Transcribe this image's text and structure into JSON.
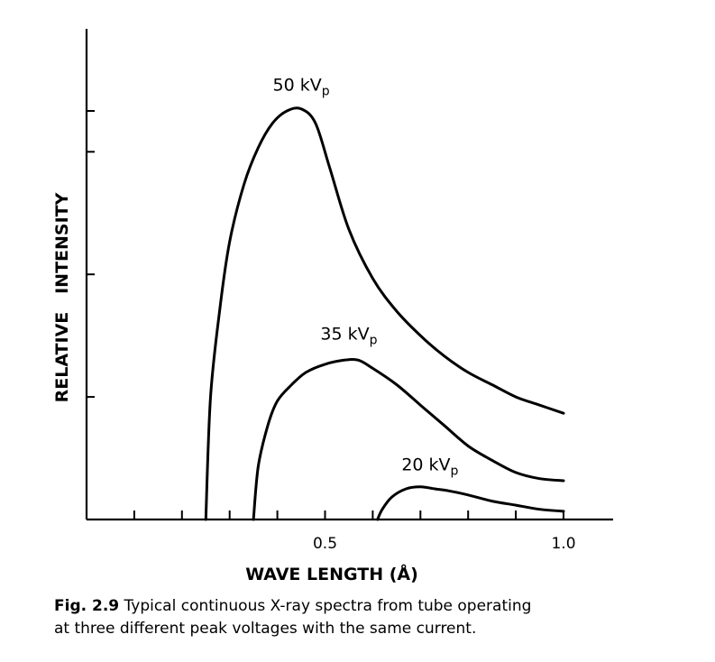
{
  "chart_data": {
    "type": "line",
    "title": "",
    "xlabel": "WAVE LENGTH (Å)",
    "ylabel": "RELATIVE   INTENSITY",
    "xlim": [
      0.0,
      1.1
    ],
    "ylim": [
      0,
      10
    ],
    "x_tick_labels": [
      {
        "value": 0.5,
        "label": "0.5"
      },
      {
        "value": 1.0,
        "label": "1.0"
      }
    ],
    "x_minor_ticks": [
      0.1,
      0.2,
      0.3,
      0.4,
      0.5,
      0.6,
      0.7,
      0.8,
      0.9,
      1.0
    ],
    "y_ticks": [
      3,
      6,
      9,
      10
    ],
    "grid": false,
    "legend": "none",
    "series": [
      {
        "name": "50 kVp",
        "label_main": "50 kV",
        "label_sub": "p",
        "label_at": [
          0.45,
          10.5
        ],
        "x": [
          0.25,
          0.26,
          0.28,
          0.3,
          0.33,
          0.36,
          0.39,
          0.42,
          0.45,
          0.48,
          0.51,
          0.55,
          0.6,
          0.65,
          0.7,
          0.75,
          0.8,
          0.85,
          0.9,
          0.95,
          1.0
        ],
        "values": [
          0.0,
          3.0,
          5.2,
          6.8,
          8.2,
          9.1,
          9.7,
          10.0,
          10.05,
          9.7,
          8.6,
          7.1,
          5.9,
          5.1,
          4.5,
          4.0,
          3.6,
          3.3,
          3.0,
          2.8,
          2.6
        ]
      },
      {
        "name": "35 kVp",
        "label_main": "35 kV",
        "label_sub": "p",
        "label_at": [
          0.55,
          4.4
        ],
        "x": [
          0.35,
          0.36,
          0.38,
          0.4,
          0.43,
          0.46,
          0.5,
          0.54,
          0.57,
          0.6,
          0.65,
          0.7,
          0.75,
          0.8,
          0.85,
          0.9,
          0.95,
          1.0
        ],
        "values": [
          0.0,
          1.3,
          2.3,
          2.9,
          3.3,
          3.6,
          3.8,
          3.9,
          3.9,
          3.7,
          3.3,
          2.8,
          2.3,
          1.8,
          1.45,
          1.15,
          1.0,
          0.95
        ]
      },
      {
        "name": "20 kVp",
        "label_main": "20 kV",
        "label_sub": "p",
        "label_at": [
          0.72,
          1.2
        ],
        "x": [
          0.61,
          0.62,
          0.64,
          0.67,
          0.7,
          0.73,
          0.76,
          0.8,
          0.85,
          0.9,
          0.95,
          1.0
        ],
        "values": [
          0.0,
          0.25,
          0.55,
          0.75,
          0.8,
          0.75,
          0.7,
          0.6,
          0.45,
          0.35,
          0.25,
          0.2
        ]
      }
    ]
  },
  "caption": {
    "fig_label": "Fig. 2.9",
    "line1": "Typical continuous X-ray spectra from tube operating",
    "line2": "at three different peak voltages with the same current."
  }
}
